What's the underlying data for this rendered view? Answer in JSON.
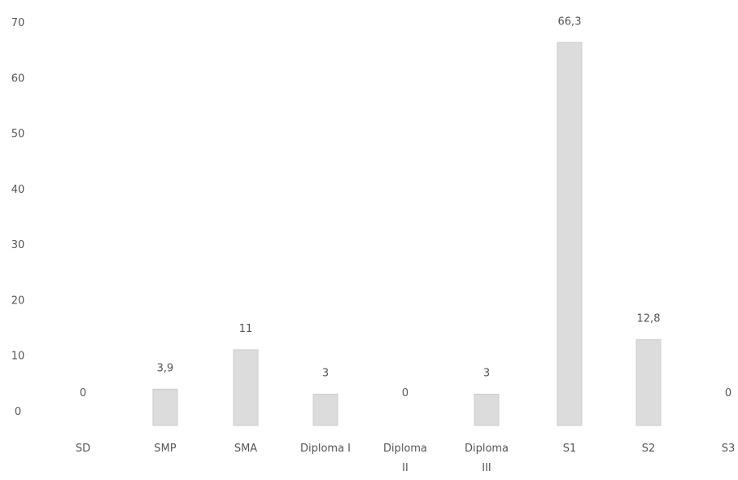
{
  "chart_data": {
    "type": "bar",
    "categories": [
      [
        "SD"
      ],
      [
        "SMP"
      ],
      [
        "SMA"
      ],
      [
        "Diploma I"
      ],
      [
        "Diploma",
        "II"
      ],
      [
        "Diploma",
        "III"
      ],
      [
        "S1"
      ],
      [
        "S2"
      ],
      [
        "S3"
      ]
    ],
    "values": [
      0,
      3.9,
      11,
      3,
      0,
      3,
      66.3,
      12.8,
      0
    ],
    "data_labels": [
      "0",
      "3,9",
      "11",
      "3",
      "0",
      "3",
      "66,3",
      "12,8",
      "0"
    ],
    "yticks": [
      "0",
      "10",
      "20",
      "30",
      "40",
      "50",
      "60",
      "70"
    ],
    "ylim": [
      0,
      70
    ],
    "grid": false,
    "legend": "none",
    "bar_color": "#dcdcdc",
    "bar_edge_color": "#cccccc",
    "text_color": "#555555"
  }
}
